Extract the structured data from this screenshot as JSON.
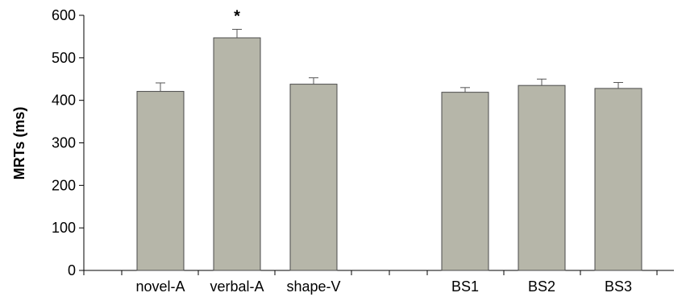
{
  "chart_data": {
    "type": "bar",
    "title": "",
    "xlabel": "",
    "ylabel": "MRTs (ms)",
    "ylim": [
      0,
      600
    ],
    "yticks": [
      0,
      100,
      200,
      300,
      400,
      500,
      600
    ],
    "grid": false,
    "categories": [
      "novel-A",
      "verbal-A",
      "shape-V",
      "BS1",
      "BS2",
      "BS3"
    ],
    "values": [
      421,
      547,
      438,
      419,
      435,
      428
    ],
    "errors": [
      20,
      20,
      15,
      11,
      15,
      14
    ],
    "annotations": [
      {
        "category": "verbal-A",
        "text": "*"
      }
    ],
    "colors": {
      "bar_fill": "#b6b6a9",
      "bar_stroke": "#4a4a4a",
      "axis": "#000000"
    }
  }
}
